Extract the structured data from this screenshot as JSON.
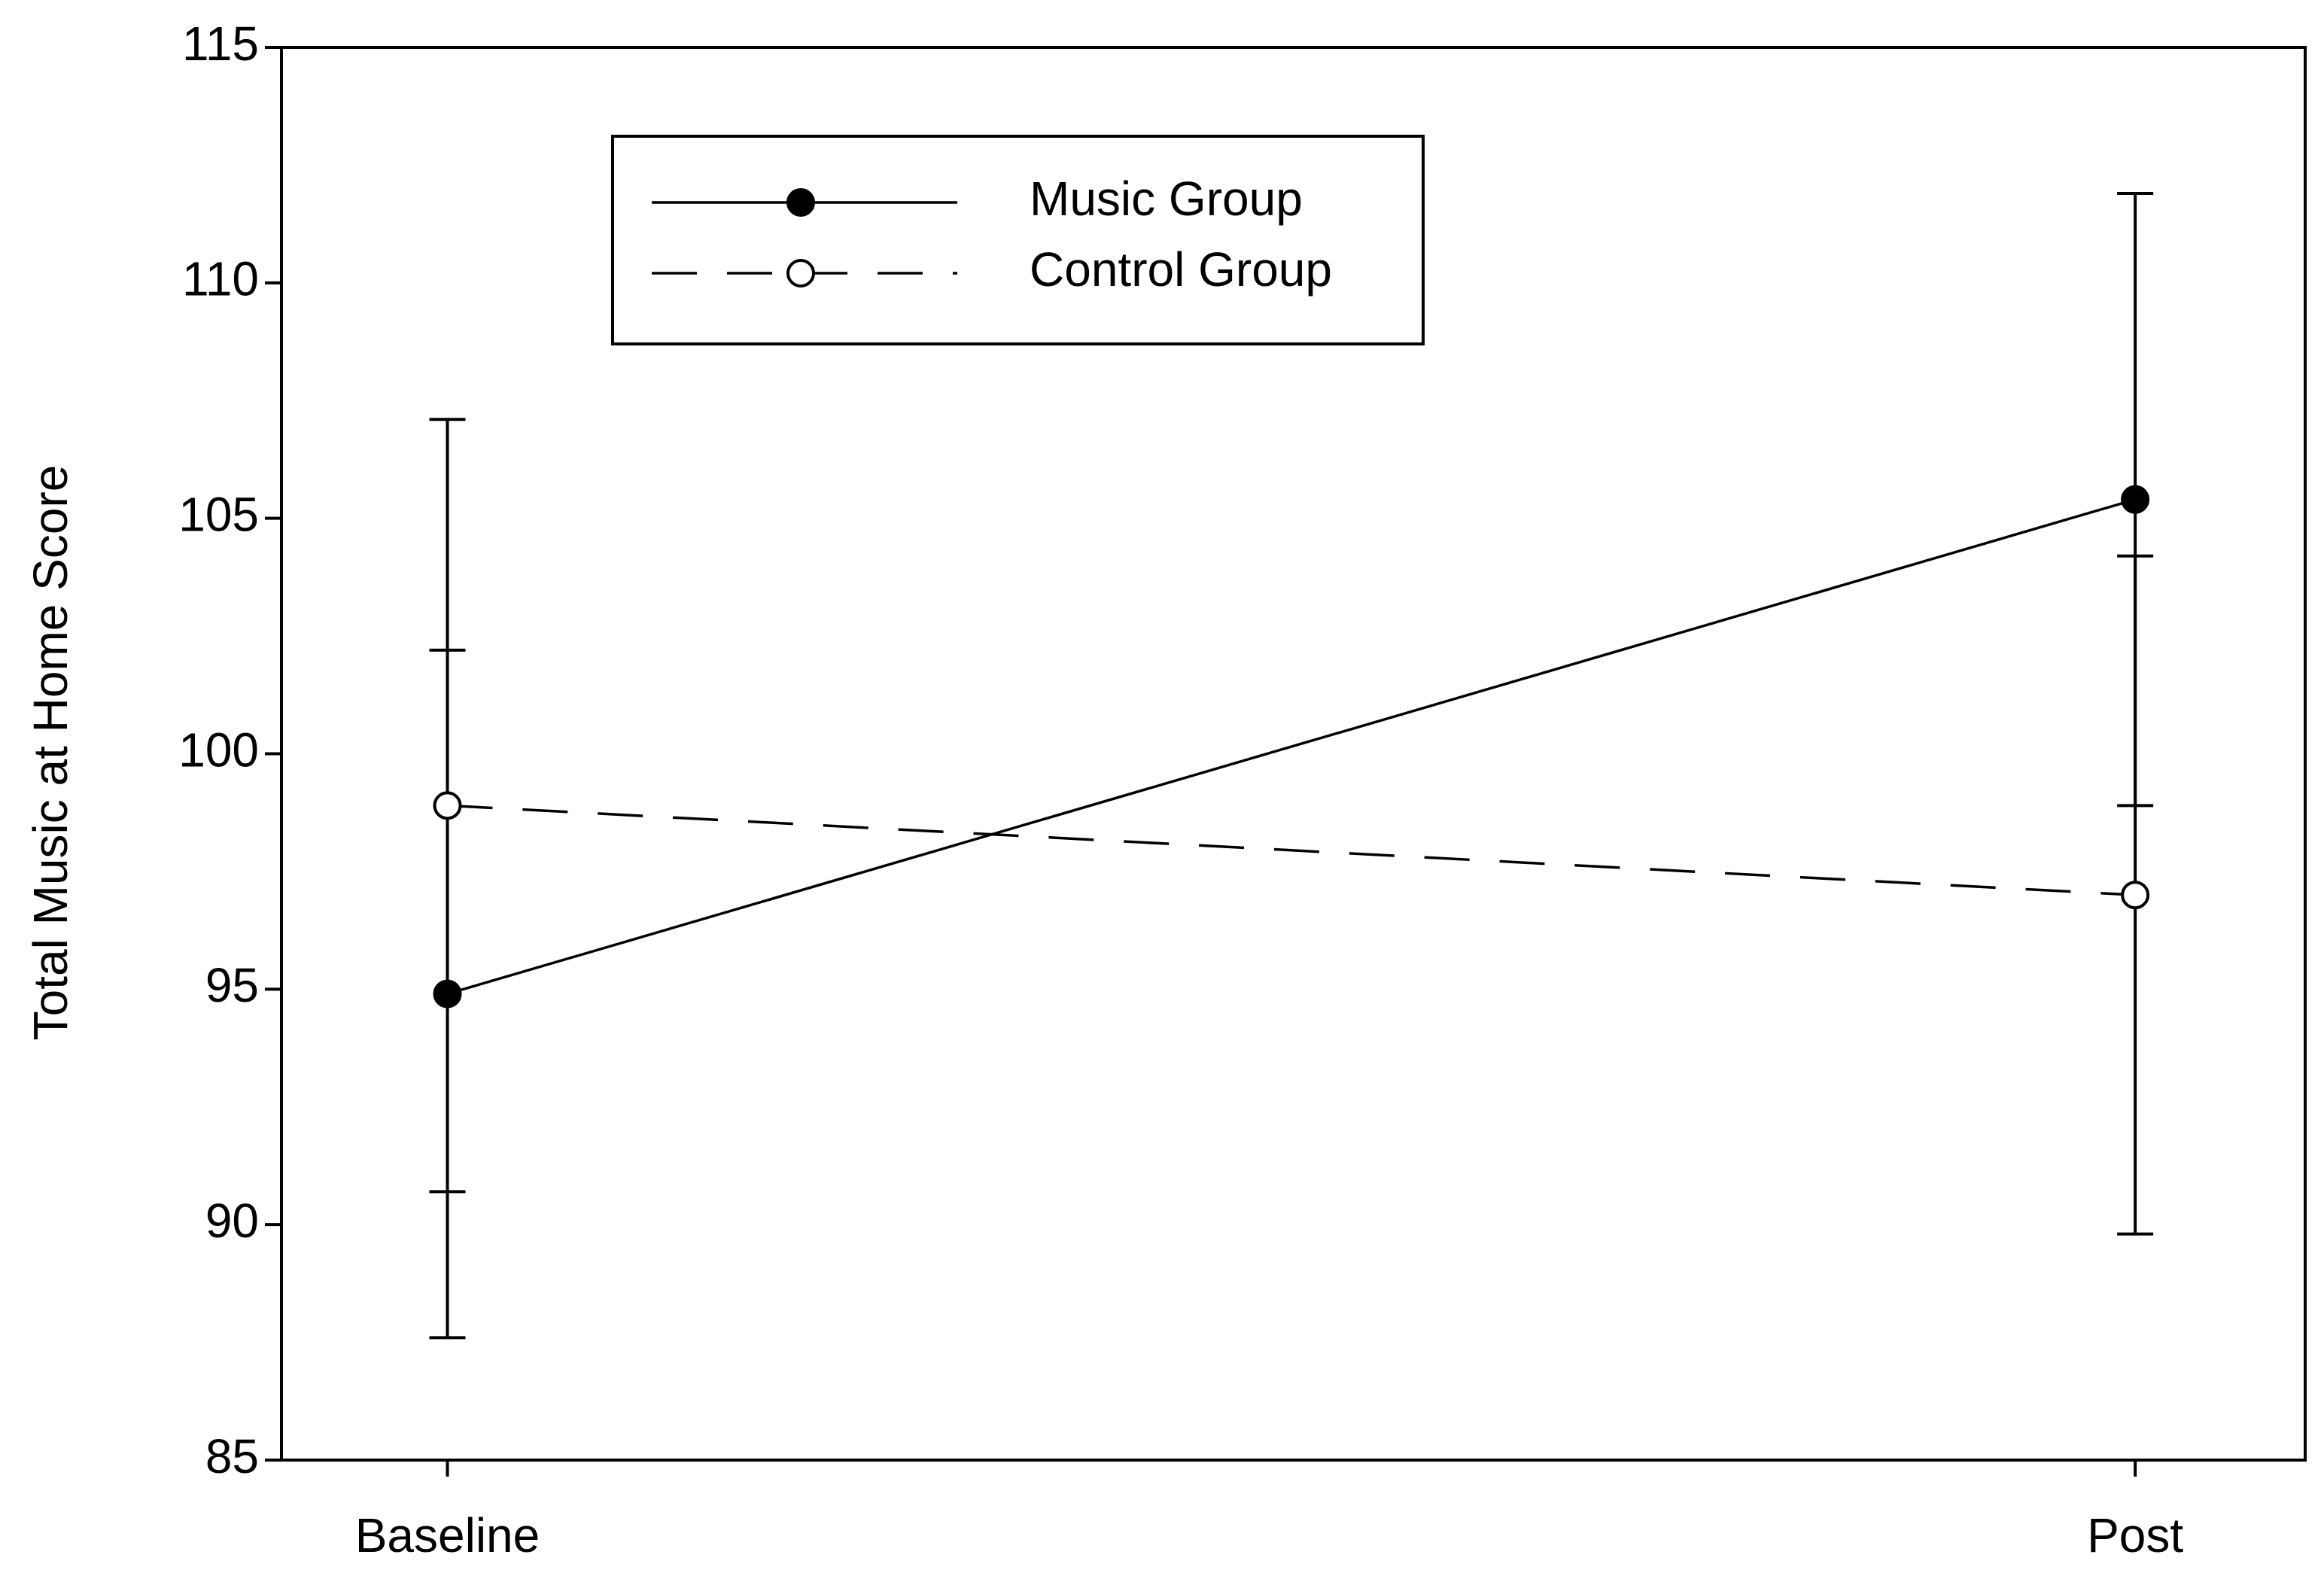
{
  "chart_data": {
    "type": "line",
    "ylabel": "Total Music at Home Score",
    "categories": [
      "Baseline",
      "Post"
    ],
    "series": [
      {
        "name": "Music Group",
        "color": "#000000",
        "marker_fill": "#000000",
        "line_style": "solid",
        "values": [
          94.9,
          105.4
        ],
        "errors": [
          7.3,
          6.5
        ]
      },
      {
        "name": "Control Group",
        "color": "#000000",
        "marker_fill": "#ffffff",
        "line_style": "dashed",
        "values": [
          98.9,
          97.0
        ],
        "errors": [
          8.2,
          7.2
        ]
      }
    ],
    "ylim": [
      85,
      115
    ],
    "yticks": [
      85,
      90,
      95,
      100,
      105,
      110,
      115
    ],
    "grid": false,
    "legend": "upper left"
  }
}
